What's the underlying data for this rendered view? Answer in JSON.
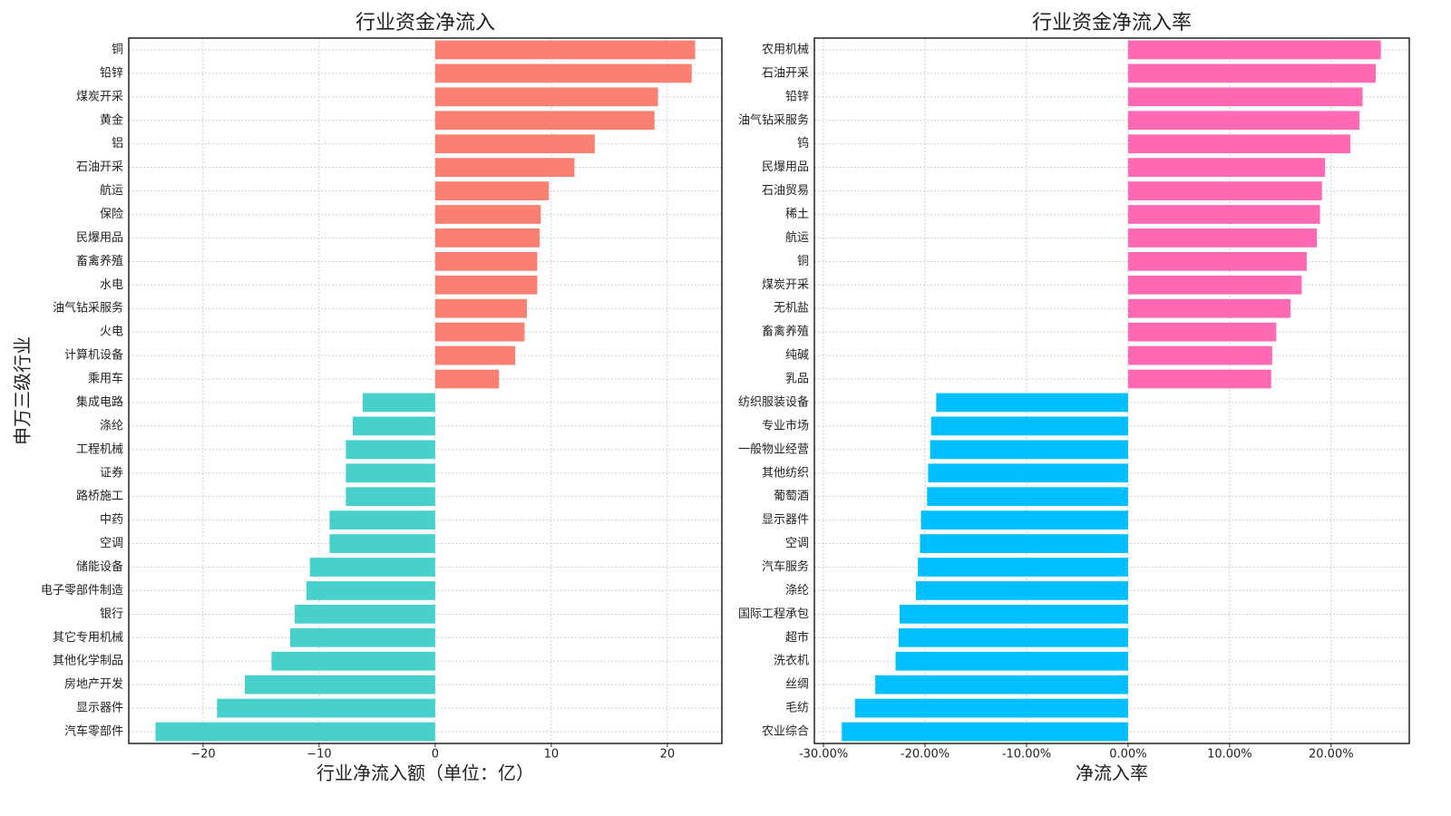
{
  "chart_data": [
    {
      "type": "barh",
      "title": "行业资金净流入",
      "xlabel": "行业净流入额（单位：亿）",
      "ylabel": "申万三级行业",
      "categories": [
        "铜",
        "铅锌",
        "煤炭开采",
        "黄金",
        "铝",
        "石油开采",
        "航运",
        "保险",
        "民爆用品",
        "畜禽养殖",
        "水电",
        "油气钻采服务",
        "火电",
        "计算机设备",
        "乘用车",
        "集成电路",
        "涤纶",
        "工程机械",
        "证券",
        "路桥施工",
        "中药",
        "空调",
        "储能设备",
        "电子零部件制造",
        "银行",
        "其它专用机械",
        "其他化学制品",
        "房地产开发",
        "显示器件",
        "汽车零部件"
      ],
      "values": [
        22.4,
        22.1,
        19.2,
        18.9,
        13.75,
        12.0,
        9.8,
        9.1,
        9.0,
        8.8,
        8.8,
        7.9,
        7.7,
        6.9,
        5.5,
        -6.25,
        -7.1,
        -7.7,
        -7.7,
        -7.7,
        -9.1,
        -9.1,
        -10.8,
        -11.1,
        -12.1,
        -12.5,
        -14.1,
        -16.4,
        -18.8,
        -24.1
      ],
      "positive_color": "#fa8072",
      "negative_color": "#48d1cc",
      "xlim": [
        -26.4,
        24.7
      ],
      "xticks": [
        {
          "value": -20,
          "label": "−20"
        },
        {
          "value": -10,
          "label": "−10"
        },
        0,
        10,
        20
      ],
      "grid": true
    },
    {
      "type": "barh",
      "title": "行业资金净流入率",
      "xlabel": "净流入率",
      "categories": [
        "农用机械",
        "石油开采",
        "铅锌",
        "油气钻采服务",
        "钨",
        "民爆用品",
        "石油贸易",
        "稀土",
        "航运",
        "铜",
        "煤炭开采",
        "无机盐",
        "畜禽养殖",
        "纯碱",
        "乳品",
        "纺织服装设备",
        "专业市场",
        "一般物业经营",
        "其他纺织",
        "葡萄酒",
        "显示器件",
        "空调",
        "汽车服务",
        "涤纶",
        "国际工程承包",
        "超市",
        "洗衣机",
        "丝绸",
        "毛纺",
        "农业综合"
      ],
      "values": [
        24.9,
        24.4,
        23.1,
        22.8,
        21.9,
        19.4,
        19.1,
        18.9,
        18.6,
        17.6,
        17.1,
        16.0,
        14.6,
        14.2,
        14.1,
        -18.9,
        -19.4,
        -19.5,
        -19.7,
        -19.8,
        -20.4,
        -20.5,
        -20.7,
        -20.9,
        -22.5,
        -22.6,
        -22.9,
        -24.9,
        -26.9,
        -28.2
      ],
      "positive_color": "#ff69b4",
      "negative_color": "#00bfff",
      "xlim": [
        -30.9,
        27.7
      ],
      "xticks": [
        {
          "value": -30,
          "label": "-30.00%"
        },
        {
          "value": -20,
          "label": "-20.00%"
        },
        {
          "value": -10,
          "label": "-10.00%"
        },
        {
          "value": 0,
          "label": "0.00%"
        },
        {
          "value": 10,
          "label": "10.00%"
        },
        {
          "value": 20,
          "label": "20.00%"
        }
      ],
      "grid": true
    }
  ]
}
